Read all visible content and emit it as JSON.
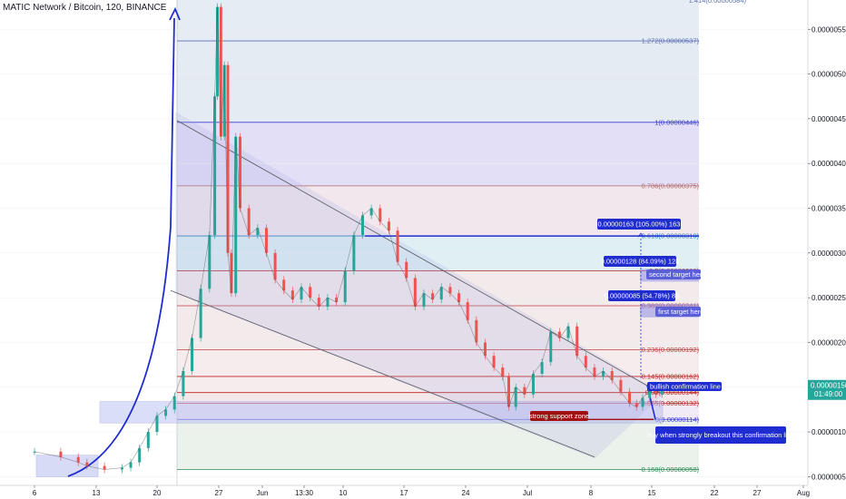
{
  "title": "MATIC Network / Bitcoin, 120, BINANCE",
  "chart_data": {
    "type": "candlestick",
    "title": "MATIC Network / Bitcoin, 120, BINANCE",
    "y_axis": {
      "ticks": [
        "0.00000550",
        "0.00000500",
        "0.00000450",
        "0.00000400",
        "0.00000350",
        "0.00000300",
        "0.00000250",
        "0.00000200",
        "0.00000150",
        "0.00000100",
        "0.00000050"
      ],
      "tick_values": [
        550,
        500,
        450,
        400,
        350,
        300,
        250,
        200,
        150,
        100,
        50
      ],
      "range": [
        45,
        585
      ],
      "unit_scale": 1e-08
    },
    "x_axis": {
      "ticks": [
        "6",
        "13",
        "20",
        "27",
        "Jun",
        "13:30",
        "10",
        "17",
        "24",
        "Jul",
        "8",
        "15",
        "22",
        "27",
        "Aug"
      ]
    },
    "last_price": {
      "value": "0.00000150",
      "time": "01:49:00"
    },
    "fib_levels": [
      {
        "ratio": "1.272",
        "price": 537,
        "label": "1.272(0.00000537)",
        "color": "#5B6FB5"
      },
      {
        "ratio": "1",
        "price": 446,
        "label": "1(0.00000446)",
        "color": "#3b3bd0"
      },
      {
        "ratio": "0.786",
        "price": 375,
        "label": "0.786(0.00000375)",
        "color": "#b06a6a"
      },
      {
        "ratio": "0.618",
        "price": 319,
        "label": "0.618(0.00000319)",
        "color": "#2a7fc0"
      },
      {
        "ratio": "0.5",
        "price": 280,
        "label": "0.5(0.00000280)",
        "color": "#c04040"
      },
      {
        "ratio": "0.382",
        "price": 241,
        "label": "0.382(0.00000241)",
        "color": "#c04040"
      },
      {
        "ratio": "0.236",
        "price": 192,
        "label": "0.236(0.00000192)",
        "color": "#c04040"
      },
      {
        "ratio": "0.145",
        "price": 162,
        "label": "0.145(0.00000162)",
        "color": "#c02020"
      },
      {
        "ratio": "0.09",
        "price": 144,
        "label": "0.09(0.00000144)",
        "color": "#c02020"
      },
      {
        "ratio": "0.055",
        "price": 132,
        "label": "0.055(0.00000132)",
        "color": "#c02020"
      },
      {
        "ratio": "0",
        "price": 114,
        "label": "0(0.00000114)",
        "color": "#3b3bd0"
      },
      {
        "ratio": "-0.168",
        "price": 58,
        "label": "-0.168(0.00000058)",
        "color": "#2e8b57"
      }
    ],
    "top_partial_label": "1.414(0.00000584)",
    "price_series": [
      {
        "d": 0,
        "c": 78
      },
      {
        "d": 3,
        "c": 72
      },
      {
        "d": 5,
        "c": 66
      },
      {
        "d": 6,
        "c": 62
      },
      {
        "d": 8,
        "c": 58
      },
      {
        "d": 10,
        "c": 60
      },
      {
        "d": 11,
        "c": 66
      },
      {
        "d": 12,
        "c": 82
      },
      {
        "d": 13,
        "c": 100
      },
      {
        "d": 14,
        "c": 118
      },
      {
        "d": 15,
        "c": 125
      },
      {
        "d": 16,
        "c": 140
      },
      {
        "d": 17,
        "c": 168
      },
      {
        "d": 18,
        "c": 205
      },
      {
        "d": 19,
        "c": 260
      },
      {
        "d": 20,
        "c": 320
      },
      {
        "d": 20.6,
        "c": 475
      },
      {
        "d": 20.9,
        "c": 575
      },
      {
        "d": 21.3,
        "c": 430
      },
      {
        "d": 21.7,
        "c": 510
      },
      {
        "d": 22.1,
        "c": 300
      },
      {
        "d": 22.5,
        "c": 255
      },
      {
        "d": 23.0,
        "c": 430
      },
      {
        "d": 23.5,
        "c": 350
      },
      {
        "d": 24.5,
        "c": 320
      },
      {
        "d": 25.5,
        "c": 328
      },
      {
        "d": 26.5,
        "c": 300
      },
      {
        "d": 27.5,
        "c": 270
      },
      {
        "d": 28.5,
        "c": 258
      },
      {
        "d": 29.5,
        "c": 248
      },
      {
        "d": 30.5,
        "c": 262
      },
      {
        "d": 31.5,
        "c": 250
      },
      {
        "d": 32.5,
        "c": 240
      },
      {
        "d": 33.5,
        "c": 250
      },
      {
        "d": 34.5,
        "c": 245
      },
      {
        "d": 35.5,
        "c": 280
      },
      {
        "d": 36.5,
        "c": 320
      },
      {
        "d": 37.5,
        "c": 342
      },
      {
        "d": 38.5,
        "c": 350
      },
      {
        "d": 39.5,
        "c": 335
      },
      {
        "d": 40.5,
        "c": 325
      },
      {
        "d": 41.5,
        "c": 290
      },
      {
        "d": 42.5,
        "c": 272
      },
      {
        "d": 43.5,
        "c": 240
      },
      {
        "d": 44.5,
        "c": 255
      },
      {
        "d": 45.5,
        "c": 248
      },
      {
        "d": 46.5,
        "c": 262
      },
      {
        "d": 47.5,
        "c": 255
      },
      {
        "d": 48.5,
        "c": 245
      },
      {
        "d": 49.5,
        "c": 225
      },
      {
        "d": 50.5,
        "c": 200
      },
      {
        "d": 51.5,
        "c": 185
      },
      {
        "d": 52.5,
        "c": 172
      },
      {
        "d": 53.5,
        "c": 162
      },
      {
        "d": 54.2,
        "c": 128
      },
      {
        "d": 55,
        "c": 150
      },
      {
        "d": 56,
        "c": 142
      },
      {
        "d": 57,
        "c": 165
      },
      {
        "d": 58,
        "c": 178
      },
      {
        "d": 59,
        "c": 212
      },
      {
        "d": 60,
        "c": 205
      },
      {
        "d": 61,
        "c": 218
      },
      {
        "d": 62,
        "c": 185
      },
      {
        "d": 63,
        "c": 172
      },
      {
        "d": 64,
        "c": 162
      },
      {
        "d": 65,
        "c": 168
      },
      {
        "d": 66,
        "c": 158
      },
      {
        "d": 67,
        "c": 145
      },
      {
        "d": 68,
        "c": 132
      },
      {
        "d": 68.8,
        "c": 128
      },
      {
        "d": 69.5,
        "c": 138
      },
      {
        "d": 70.3,
        "c": 146
      },
      {
        "d": 71,
        "c": 142
      },
      {
        "d": 71.7,
        "c": 150
      }
    ],
    "annotations": {
      "target3": "0.00000163 (105.00%) 163",
      "target2": "0.00000128 (84.09%) 128",
      "target1": "0.00000085 (54.78%) 85",
      "second_target": "second target here",
      "first_target": "first target here",
      "confirmation": "bullish confirmation line",
      "support": "strong support zone",
      "buy": "buy when strongly breakout this confirmation line"
    }
  }
}
